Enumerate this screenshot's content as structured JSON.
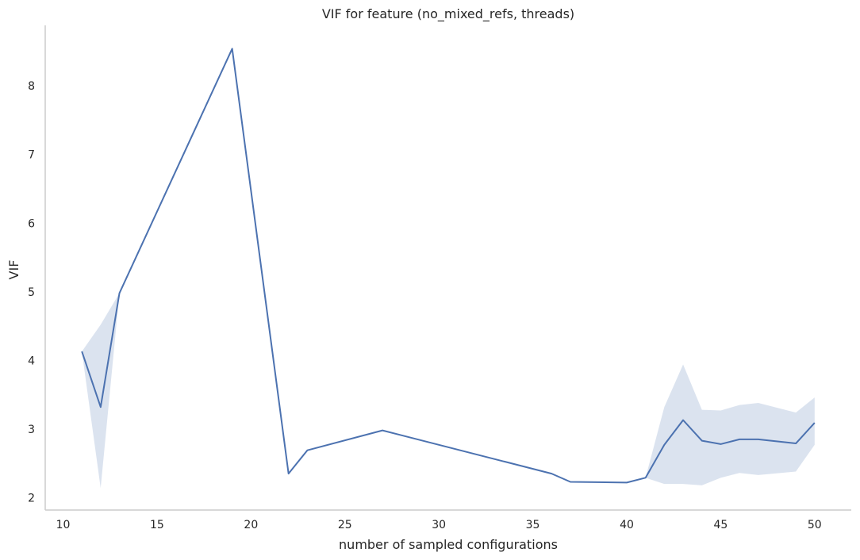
{
  "chart_data": {
    "type": "line",
    "title": "VIF for feature (no_mixed_refs, threads)",
    "xlabel": "number of sampled configurations",
    "ylabel": "VIF",
    "xlim": [
      9.05,
      51.95
    ],
    "ylim": [
      1.82,
      8.88
    ],
    "xticks": [
      10,
      15,
      20,
      25,
      30,
      35,
      40,
      45,
      50
    ],
    "yticks": [
      2,
      3,
      4,
      5,
      6,
      7,
      8
    ],
    "grid": false,
    "line_color": "#4c72b0",
    "band_color": "#4c72b0",
    "series": [
      {
        "x": [
          11,
          12,
          13,
          19,
          22,
          23,
          27,
          36,
          37,
          40,
          41,
          42,
          43,
          44,
          45,
          46,
          47,
          49,
          50
        ],
        "y": [
          4.13,
          3.32,
          4.98,
          8.54,
          2.35,
          2.69,
          2.98,
          2.35,
          2.23,
          2.22,
          2.29,
          2.77,
          3.13,
          2.83,
          2.78,
          2.85,
          2.85,
          2.79,
          3.09
        ],
        "ci_low": [
          4.13,
          2.14,
          4.98,
          8.54,
          2.35,
          2.69,
          2.98,
          2.35,
          2.23,
          2.22,
          2.29,
          2.2,
          2.2,
          2.18,
          2.29,
          2.36,
          2.33,
          2.38,
          2.77
        ],
        "ci_high": [
          4.13,
          4.52,
          4.98,
          8.54,
          2.35,
          2.69,
          2.98,
          2.35,
          2.23,
          2.22,
          2.29,
          3.32,
          3.94,
          3.28,
          3.27,
          3.35,
          3.38,
          3.24,
          3.46
        ]
      }
    ]
  }
}
